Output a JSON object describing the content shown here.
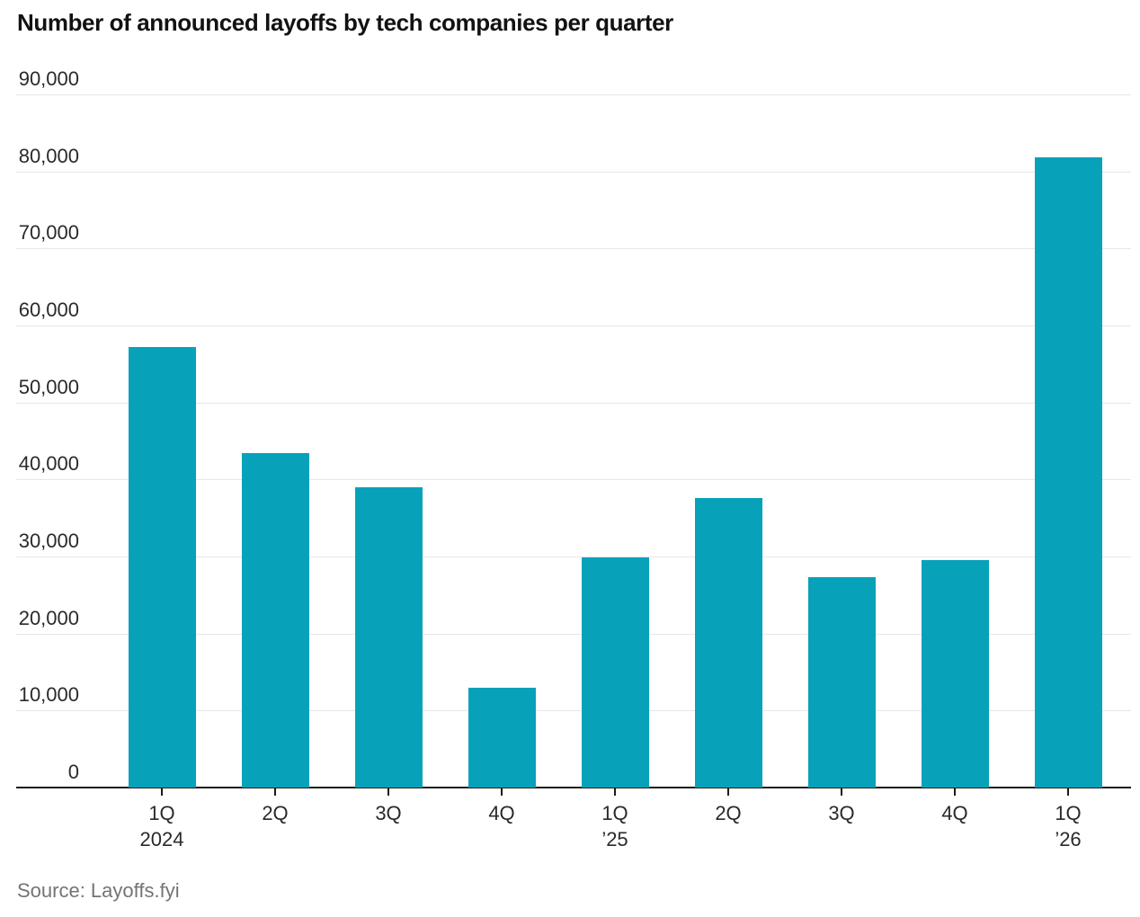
{
  "chart_data": {
    "type": "bar",
    "title": "Number of announced layoffs by tech companies per quarter",
    "source": "Source: Layoffs.fyi",
    "categories": [
      {
        "quarter": "1Q",
        "year": "2024"
      },
      {
        "quarter": "2Q",
        "year": ""
      },
      {
        "quarter": "3Q",
        "year": ""
      },
      {
        "quarter": "4Q",
        "year": ""
      },
      {
        "quarter": "1Q",
        "year": "’25"
      },
      {
        "quarter": "2Q",
        "year": ""
      },
      {
        "quarter": "3Q",
        "year": ""
      },
      {
        "quarter": "4Q",
        "year": ""
      },
      {
        "quarter": "1Q",
        "year": "’26"
      }
    ],
    "values": [
      57200,
      43400,
      39000,
      13000,
      29900,
      37600,
      27300,
      29500,
      81800
    ],
    "xlabel": "",
    "ylabel": "",
    "ylim": [
      0,
      90000
    ],
    "ytick_interval": 10000,
    "ytick_labels": [
      "0",
      "10,000",
      "20,000",
      "30,000",
      "40,000",
      "50,000",
      "60,000",
      "70,000",
      "80,000",
      "90,000"
    ],
    "grid": true,
    "legend": "none",
    "bar_color": "#07a2ba",
    "axis_color": "#1a1a1a",
    "gridline_color": "#e7e7e7",
    "label_color": "#2a2a2a",
    "title_color": "#121212",
    "source_color": "#747474"
  }
}
